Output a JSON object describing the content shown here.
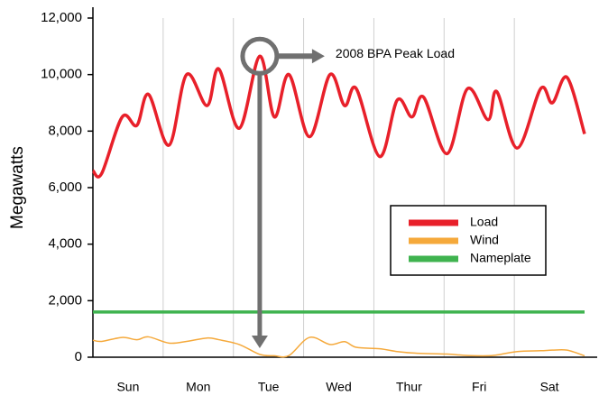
{
  "chart_data": {
    "type": "line",
    "y_label": "Megawatts",
    "annotation": "2008 BPA Peak Load",
    "x": [
      0,
      3,
      10,
      15,
      19,
      26,
      32,
      39,
      43,
      50,
      57,
      62,
      67,
      74,
      81,
      86,
      90,
      98,
      104,
      109,
      113,
      121,
      128,
      135,
      138,
      145,
      153,
      157,
      162,
      168
    ],
    "series": [
      {
        "name": "Load",
        "color": "#e8202a",
        "values": [
          6600,
          6500,
          8500,
          8200,
          9300,
          7500,
          10000,
          8900,
          10200,
          8100,
          10650,
          8500,
          10000,
          7800,
          10000,
          8900,
          9500,
          7100,
          9100,
          8500,
          9200,
          7200,
          9500,
          8400,
          9400,
          7400,
          9500,
          9000,
          9900,
          7900
        ]
      },
      {
        "name": "Wind",
        "color": "#f5a93b",
        "values": [
          600,
          560,
          700,
          620,
          720,
          500,
          560,
          680,
          620,
          450,
          100,
          50,
          60,
          700,
          450,
          550,
          350,
          300,
          200,
          150,
          130,
          110,
          60,
          50,
          80,
          200,
          230,
          250,
          250,
          50
        ]
      },
      {
        "name": "Nameplate",
        "color": "#3fb34f",
        "x": [
          0,
          168
        ],
        "values": [
          1600,
          1600
        ]
      }
    ],
    "xlim": [
      0,
      168
    ],
    "xticks": [
      {
        "value": 12,
        "label": "Sun"
      },
      {
        "value": 36,
        "label": "Mon"
      },
      {
        "value": 60,
        "label": "Tue"
      },
      {
        "value": 84,
        "label": "Wed"
      },
      {
        "value": 108,
        "label": "Thur"
      },
      {
        "value": 132,
        "label": "Fri"
      },
      {
        "value": 156,
        "label": "Sat"
      }
    ],
    "xgrid": [
      24,
      48,
      72,
      96,
      120,
      144
    ],
    "ylim": [
      0,
      12000
    ],
    "yticks": [
      0,
      {
        "value": 2000,
        "label": "2,000"
      },
      {
        "value": 4000,
        "label": "4,000"
      },
      {
        "value": 6000,
        "label": "6,000"
      },
      {
        "value": 8000,
        "label": "8,000"
      },
      {
        "value": 10000,
        "label": "10,000"
      },
      {
        "value": 12000,
        "label": "12,000"
      }
    ],
    "grid": true
  }
}
